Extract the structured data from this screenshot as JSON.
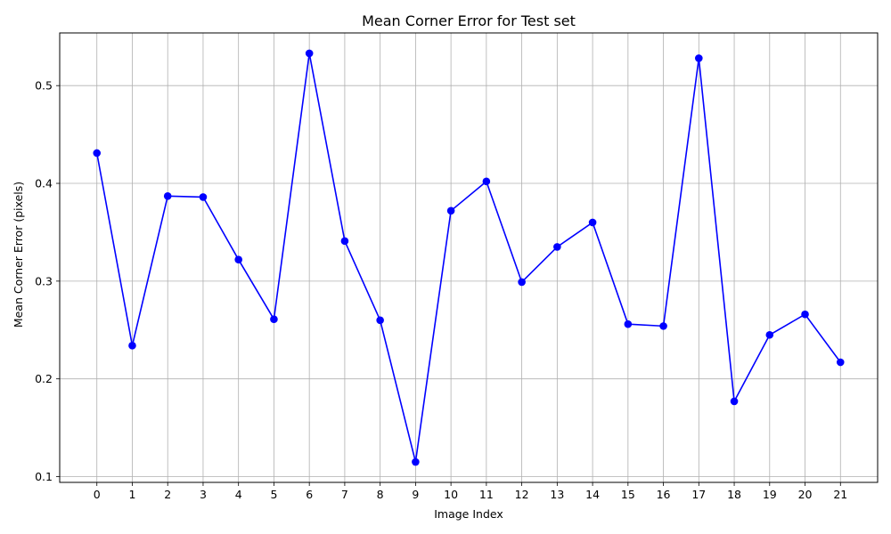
{
  "chart_data": {
    "type": "line",
    "title": "Mean Corner Error for Test set",
    "xlabel": "Image Index",
    "ylabel": "Mean Corner Error (pixels)",
    "x": [
      0,
      1,
      2,
      3,
      4,
      5,
      6,
      7,
      8,
      9,
      10,
      11,
      12,
      13,
      14,
      15,
      16,
      17,
      18,
      19,
      20,
      21
    ],
    "series": [
      {
        "values": [
          0.431,
          0.234,
          0.387,
          0.386,
          0.322,
          0.261,
          0.533,
          0.341,
          0.26,
          0.115,
          0.372,
          0.402,
          0.299,
          0.335,
          0.36,
          0.256,
          0.254,
          0.528,
          0.177,
          0.245,
          0.266,
          0.217
        ],
        "color": "#0000ff",
        "marker": "circle"
      }
    ],
    "xlim": [
      -1.05,
      22.05
    ],
    "ylim": [
      0.0941,
      0.5539
    ],
    "xticks": [
      "0",
      "1",
      "2",
      "3",
      "4",
      "5",
      "6",
      "7",
      "8",
      "9",
      "10",
      "11",
      "12",
      "13",
      "14",
      "15",
      "16",
      "17",
      "18",
      "19",
      "20",
      "21"
    ],
    "yticks": [
      0.1,
      0.2,
      0.3,
      0.4,
      0.5
    ],
    "ytick_labels": [
      "0.1",
      "0.2",
      "0.3",
      "0.4",
      "0.5"
    ],
    "grid": true,
    "grid_color": "#b0b0b0"
  }
}
